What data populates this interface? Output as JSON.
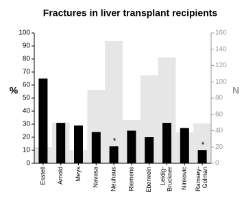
{
  "chart_data": {
    "type": "bar",
    "title": "Fractures in liver transplant recipients",
    "ylabel": "%",
    "y2label": "N",
    "categories": [
      "Esstell",
      "Arnold",
      "Meys",
      "Navasa",
      "Neuhaus",
      "Riemens",
      "Eberwein",
      "Leidig-\nBruckner",
      "Ninkovic",
      "Ramsey-\nGolman"
    ],
    "series": [
      {
        "color": "#e6e6e6",
        "axis": "y2",
        "values": [
          20,
          50,
          16,
          90,
          150,
          53,
          108,
          130,
          38,
          49
        ]
      },
      {
        "color": "#000000",
        "values": [
          65,
          31,
          29,
          24,
          13,
          25,
          20,
          31,
          27,
          10
        ]
      }
    ],
    "annotations": [
      {
        "text": "*",
        "category": 4
      },
      {
        "text": "*",
        "category": 9
      }
    ],
    "ylim": [
      0,
      100
    ],
    "yticks": [
      0,
      10,
      20,
      30,
      40,
      50,
      60,
      70,
      80,
      90,
      100
    ],
    "y2lim": [
      0,
      160
    ],
    "y2ticks": [
      0,
      20,
      40,
      60,
      80,
      100,
      120,
      140,
      160
    ],
    "y2color": "#999999"
  }
}
